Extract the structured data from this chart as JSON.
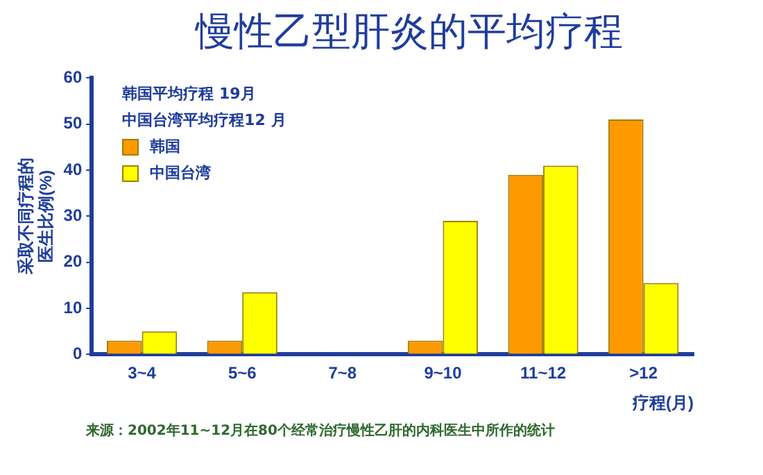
{
  "chart_data": {
    "type": "bar",
    "title": "慢性乙型肝炎的平均疗程",
    "xlabel": "疗程(月)",
    "ylabel": "采取不同疗程的医生比例(%)",
    "categories": [
      "3~4",
      "5~6",
      "7~8",
      "9~10",
      "11~12",
      ">12"
    ],
    "series": [
      {
        "name": "韩国",
        "color": "#ff9900",
        "values": [
          3,
          3,
          0,
          3,
          39,
          51
        ]
      },
      {
        "name": "中国台湾",
        "color": "#ffff00",
        "values": [
          5,
          13.5,
          0,
          29,
          41,
          15.5
        ]
      }
    ],
    "ylim": [
      0,
      60
    ],
    "yticks": [
      0,
      10,
      20,
      30,
      40,
      50,
      60
    ],
    "grid": false,
    "legend": "top left",
    "annotations": [
      "韩国平均疗程 19月",
      "中国台湾平均疗程12 月",
      "来源：2002年11~12月在80个经常治疗慢性乙肝的内科医生中所作的统计"
    ]
  }
}
